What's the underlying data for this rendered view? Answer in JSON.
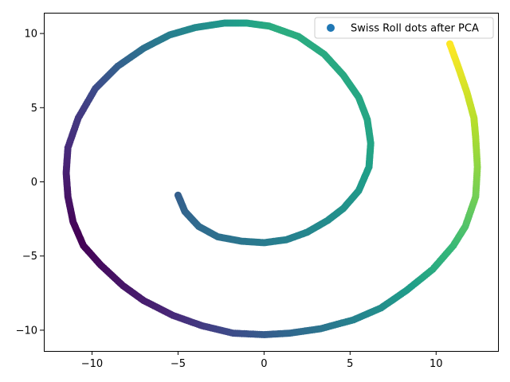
{
  "chart_data": {
    "type": "scatter",
    "title": "",
    "xlabel": "",
    "ylabel": "",
    "xlim": [
      -12.8,
      13.6
    ],
    "ylim": [
      -11.4,
      11.4
    ],
    "xticks": [
      -10,
      -5,
      0,
      5,
      10
    ],
    "yticks": [
      -10,
      -5,
      0,
      5,
      10
    ],
    "xtick_labels": [
      "−10",
      "−5",
      "0",
      "5",
      "10"
    ],
    "ytick_labels": [
      "−10",
      "−5",
      "0",
      "5",
      "10"
    ],
    "grid": false,
    "legend": {
      "position": "top-right",
      "entries": [
        "Swiss Roll dots after PCA"
      ]
    },
    "colormap": "viridis",
    "marker_color_legend": "#1f77b4",
    "series": [
      {
        "name": "Swiss Roll dots after PCA",
        "points": [
          [
            -5.0,
            -0.9
          ],
          [
            -4.6,
            -2.0
          ],
          [
            -3.8,
            -3.0
          ],
          [
            -2.7,
            -3.7
          ],
          [
            -1.3,
            -4.0
          ],
          [
            0.0,
            -4.1
          ],
          [
            1.3,
            -3.9
          ],
          [
            2.5,
            -3.4
          ],
          [
            3.7,
            -2.6
          ],
          [
            4.6,
            -1.8
          ],
          [
            5.5,
            -0.6
          ],
          [
            6.1,
            1.0
          ],
          [
            6.2,
            2.6
          ],
          [
            6.0,
            4.2
          ],
          [
            5.5,
            5.7
          ],
          [
            4.6,
            7.2
          ],
          [
            3.5,
            8.6
          ],
          [
            2.0,
            9.8
          ],
          [
            0.3,
            10.5
          ],
          [
            -1.0,
            10.7
          ],
          [
            -2.3,
            10.7
          ],
          [
            -4.0,
            10.4
          ],
          [
            -5.5,
            9.9
          ],
          [
            -7.0,
            9.0
          ],
          [
            -8.5,
            7.8
          ],
          [
            -9.8,
            6.3
          ],
          [
            -10.8,
            4.3
          ],
          [
            -11.4,
            2.3
          ],
          [
            -11.5,
            0.6
          ],
          [
            -11.4,
            -1.0
          ],
          [
            -11.1,
            -2.7
          ],
          [
            -10.5,
            -4.3
          ],
          [
            -9.5,
            -5.6
          ],
          [
            -8.2,
            -7.0
          ],
          [
            -7.0,
            -8.0
          ],
          [
            -5.3,
            -9.0
          ],
          [
            -3.6,
            -9.7
          ],
          [
            -1.8,
            -10.2
          ],
          [
            0.0,
            -10.3
          ],
          [
            1.5,
            -10.2
          ],
          [
            3.3,
            -9.9
          ],
          [
            5.2,
            -9.3
          ],
          [
            6.8,
            -8.5
          ],
          [
            8.3,
            -7.3
          ],
          [
            9.8,
            -5.9
          ],
          [
            11.0,
            -4.3
          ],
          [
            11.7,
            -3.0
          ],
          [
            12.3,
            -1.0
          ],
          [
            12.4,
            1.0
          ],
          [
            12.3,
            3.0
          ],
          [
            12.2,
            4.3
          ],
          [
            11.8,
            6.0
          ],
          [
            11.3,
            7.7
          ],
          [
            10.8,
            9.3
          ]
        ]
      }
    ]
  }
}
